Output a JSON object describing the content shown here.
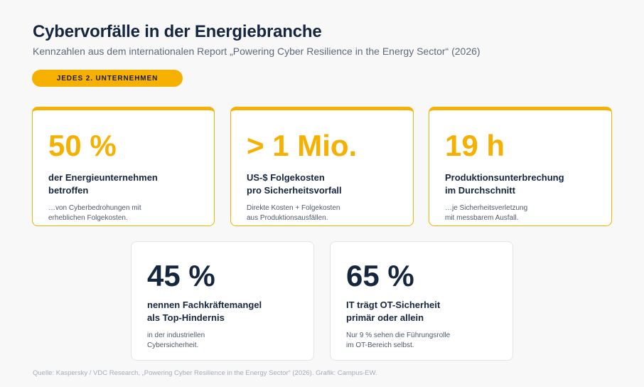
{
  "header": {
    "title": "Cybervorfälle in der Energiebranche",
    "subtitle": "Kennzahlen aus dem internationalen Report „Powering Cyber Resilience in the Energy Sector“ (2026)",
    "badge": "JEDES 2. UNTERNEHMEN"
  },
  "cards": [
    {
      "value": "50 %",
      "label": "der Energieunternehmen\nbetroffen",
      "note": "…von Cyberbedrohungen mit\nerheblichen Folgekosten."
    },
    {
      "value": "> 1 Mio.",
      "label": "US-$ Folgekosten\npro Sicherheitsvorfall",
      "note": "Direkte Kosten + Folgekosten\naus Produktionsausfällen."
    },
    {
      "value": "19 h",
      "label": "Produktionsunterbrechung\nim Durchschnitt",
      "note": "…je Sicherheitsverletzung\nmit messbarem Ausfall."
    },
    {
      "value": "45 %",
      "label": "nennen Fachkräftemangel\nals Top-Hindernis",
      "note": "in der industriellen\nCybersicherheit."
    },
    {
      "value": "65 %",
      "label": "IT trägt OT-Sicherheit\nprimär oder allein",
      "note": "Nur 9 % sehen die Führungsrolle\nim OT-Bereich selbst."
    }
  ],
  "colors": {
    "accent": "#f5b000",
    "heading": "#15263f",
    "background": "#f8f8f8"
  },
  "footer": {
    "source": "Quelle: Kaspersky / VDC Research, „Powering Cyber Resilience in the Energy Sector“ (2026). Grafik: Campus-EW."
  }
}
